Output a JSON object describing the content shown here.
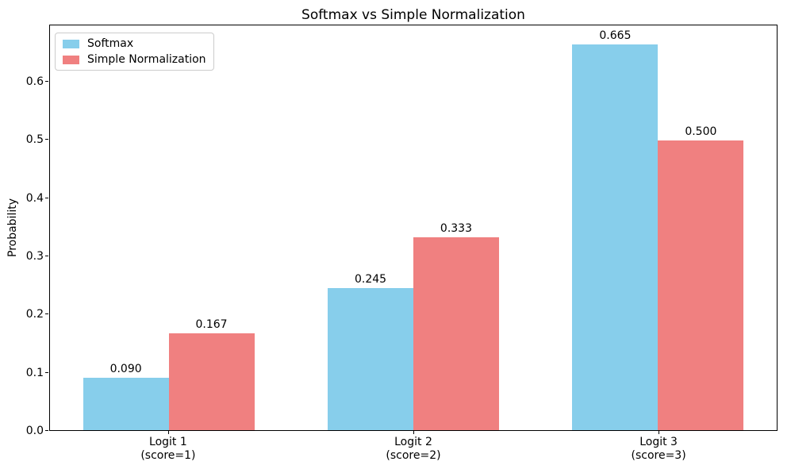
{
  "chart_data": {
    "type": "bar",
    "title": "Softmax vs Simple Normalization",
    "xlabel": "",
    "ylabel": "Probability",
    "categories": [
      "Logit 1\n(score=1)",
      "Logit 2\n(score=2)",
      "Logit 3\n(score=3)"
    ],
    "series": [
      {
        "name": "Softmax",
        "color": "#87CEEB",
        "values": [
          0.09,
          0.245,
          0.665
        ],
        "labels": [
          "0.090",
          "0.245",
          "0.665"
        ]
      },
      {
        "name": "Simple Normalization",
        "color": "#F08080",
        "values": [
          0.167,
          0.333,
          0.5
        ],
        "labels": [
          "0.167",
          "0.333",
          "0.500"
        ]
      }
    ],
    "bar_width": 0.35,
    "ylim": [
      0,
      0.698
    ],
    "xlim": [
      -0.485,
      2.485
    ],
    "yticks": [
      "0.0",
      "0.1",
      "0.2",
      "0.3",
      "0.4",
      "0.5",
      "0.6"
    ],
    "grid": false,
    "legend_position": "upper left",
    "axis_color": "#000000",
    "legend_border_color": "#cccccc"
  }
}
